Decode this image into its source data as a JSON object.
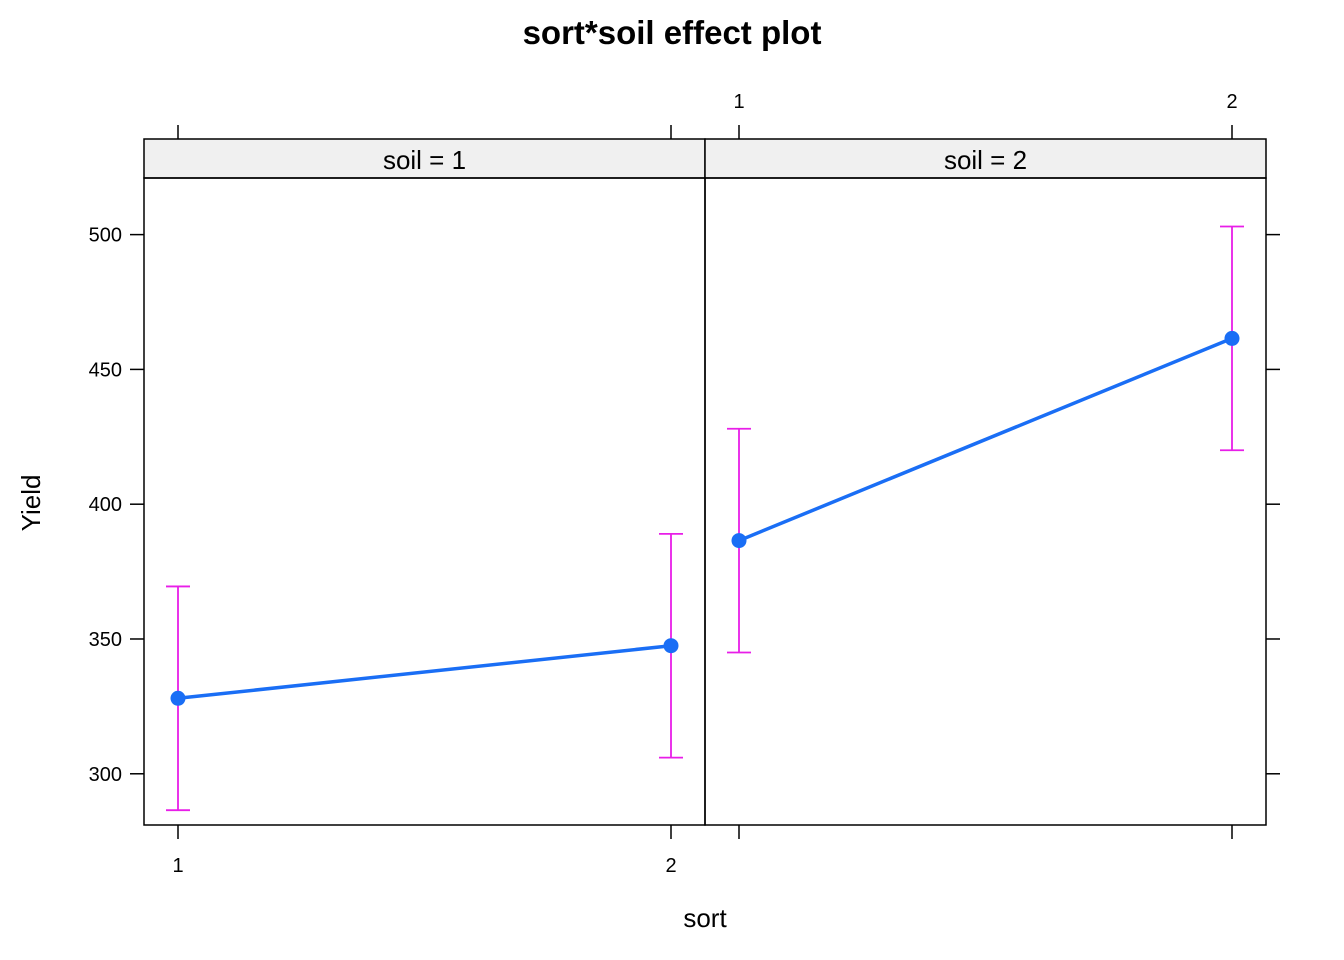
{
  "chart_data": {
    "type": "line",
    "title": "sort*soil effect plot",
    "xlabel": "sort",
    "ylabel": "Yield",
    "x_categories": [
      "1",
      "2"
    ],
    "ylim": [
      281,
      521
    ],
    "yticks": [
      300,
      350,
      400,
      450,
      500
    ],
    "grid": false,
    "colors": {
      "line": "#1a6ef5",
      "error_bar": "#e81ee8",
      "strip_bg": "#f0f0f0"
    },
    "panels": [
      {
        "strip": "soil = 1",
        "points": [
          {
            "x": "1",
            "y": 328,
            "lower": 286.5,
            "upper": 369.5
          },
          {
            "x": "2",
            "y": 347.5,
            "lower": 306,
            "upper": 389
          }
        ]
      },
      {
        "strip": "soil = 2",
        "points": [
          {
            "x": "1",
            "y": 386.5,
            "lower": 345,
            "upper": 428
          },
          {
            "x": "2",
            "y": 461.5,
            "lower": 420,
            "upper": 503
          }
        ]
      }
    ]
  }
}
